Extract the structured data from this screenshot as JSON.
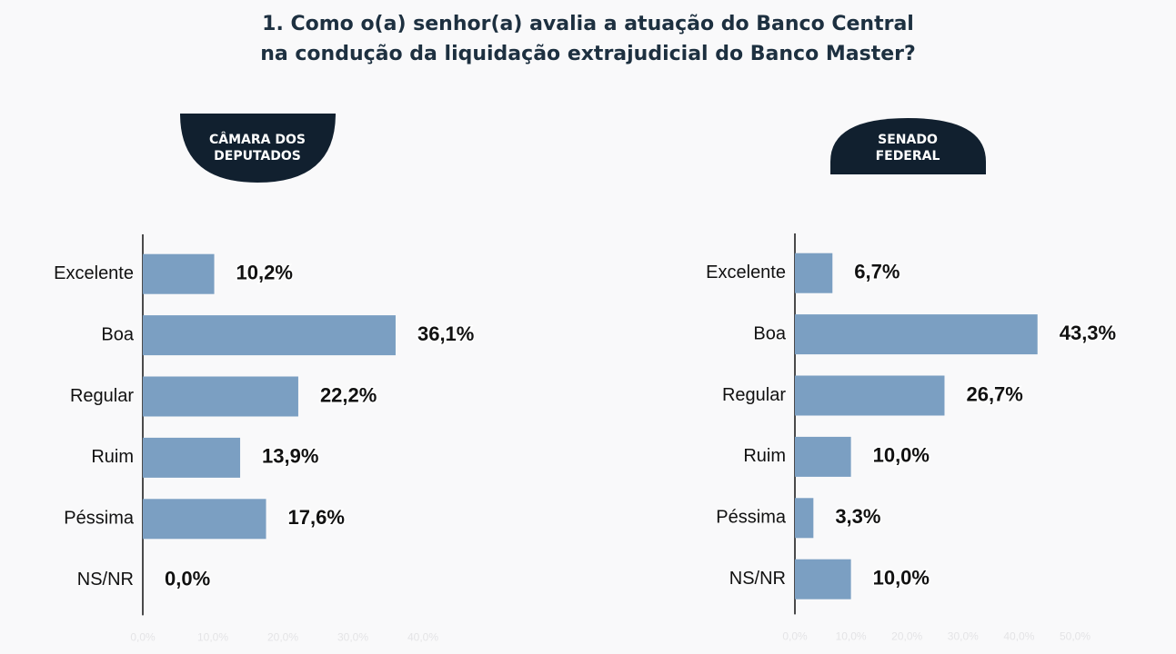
{
  "title": "1. Como o(a) senhor(a) avalia a atuação do Banco Central\nna condução da liquidação extrajudicial do Banco Master?",
  "chart_data": [
    {
      "type": "hbar",
      "subtitle": "CÂMARA DOS DEPUTADOS",
      "color": "#7b9fc2",
      "categories": [
        "Excelente",
        "Boa",
        "Regular",
        "Ruim",
        "Péssima",
        "NS/NR"
      ],
      "values": [
        10.2,
        36.1,
        22.2,
        13.9,
        17.6,
        0.0
      ],
      "value_labels": [
        "10,2%",
        "36,1%",
        "22,2%",
        "13,9%",
        "17,6%",
        "0,0%"
      ],
      "xlim": [
        0,
        40
      ],
      "xticks": [
        {
          "value": 0,
          "label": "0,0%"
        },
        {
          "value": 10,
          "label": "10,0%"
        },
        {
          "value": 20,
          "label": "20,0%"
        },
        {
          "value": 30,
          "label": "30,0%"
        },
        {
          "value": 40,
          "label": "40,0%"
        }
      ]
    },
    {
      "type": "hbar",
      "subtitle": "SENADO FEDERAL",
      "color": "#7b9fc2",
      "categories": [
        "Excelente",
        "Boa",
        "Regular",
        "Ruim",
        "Péssima",
        "NS/NR"
      ],
      "values": [
        6.7,
        43.3,
        26.7,
        10.0,
        3.3,
        10.0
      ],
      "value_labels": [
        "6,7%",
        "43,3%",
        "26,7%",
        "10,0%",
        "3,3%",
        "10,0%"
      ],
      "xlim": [
        0,
        50
      ],
      "xticks": [
        {
          "value": 0,
          "label": "0,0%"
        },
        {
          "value": 10,
          "label": "10,0%"
        },
        {
          "value": 20,
          "label": "20,0%"
        },
        {
          "value": 30,
          "label": "30,0%"
        },
        {
          "value": 40,
          "label": "40,0%"
        },
        {
          "value": 50,
          "label": "50,0%"
        }
      ]
    }
  ]
}
